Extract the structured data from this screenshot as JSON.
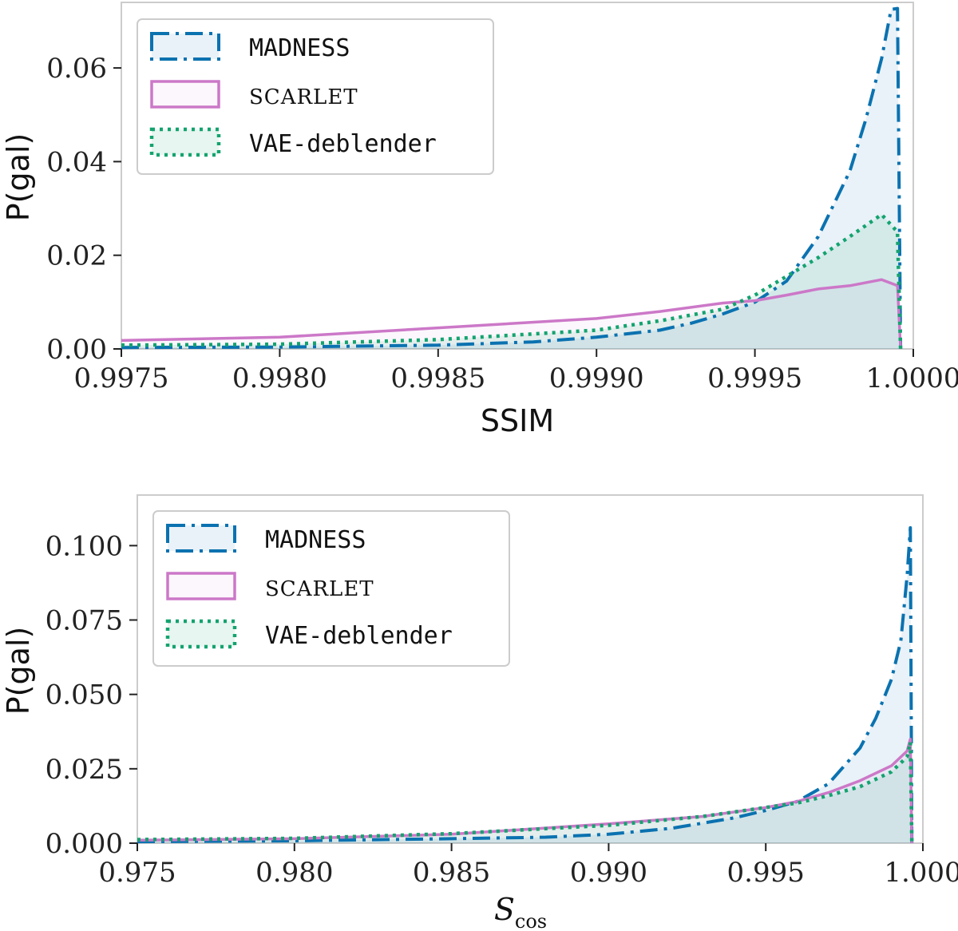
{
  "colors": {
    "madness": "#0b72b0",
    "scarlet": "#cc78c8",
    "vae": "#14a36f"
  },
  "chart_data": [
    {
      "type": "area",
      "title": "",
      "xlabel": "SSIM",
      "ylabel": "P(gal)",
      "xlim": [
        0.9975,
        1.0
      ],
      "ylim": [
        0.0,
        0.074
      ],
      "xticks": [
        0.9975,
        0.998,
        0.9985,
        0.999,
        0.9995,
        1.0
      ],
      "xtick_labels": [
        "0.9975",
        "0.9980",
        "0.9985",
        "0.9990",
        "0.9995",
        "1.0000"
      ],
      "yticks": [
        0.0,
        0.02,
        0.04,
        0.06
      ],
      "ytick_labels": [
        "0.00",
        "0.02",
        "0.04",
        "0.06"
      ],
      "legend_position": "top-left",
      "series": [
        {
          "name": "MADNESS",
          "key": "madness",
          "x": [
            0.9975,
            0.998,
            0.9985,
            0.9988,
            0.999,
            0.9992,
            0.9993,
            0.9994,
            0.9995,
            0.9996,
            0.9997,
            0.9998,
            0.99985,
            0.9999,
            0.99993,
            0.99995,
            0.99996
          ],
          "values": [
            0.0003,
            0.0004,
            0.0008,
            0.0015,
            0.0025,
            0.004,
            0.0055,
            0.0075,
            0.01,
            0.0145,
            0.024,
            0.038,
            0.049,
            0.062,
            0.0725,
            0.0727,
            0.0
          ]
        },
        {
          "name": "SCARLET",
          "key": "scarlet",
          "x": [
            0.9975,
            0.998,
            0.9985,
            0.999,
            0.9992,
            0.9994,
            0.9995,
            0.9996,
            0.9997,
            0.9998,
            0.9999,
            0.99995,
            0.99996
          ],
          "values": [
            0.0018,
            0.0025,
            0.0045,
            0.0065,
            0.008,
            0.0098,
            0.0103,
            0.0115,
            0.0128,
            0.0135,
            0.0148,
            0.0135,
            0.0
          ]
        },
        {
          "name": "VAE-deblender",
          "key": "vae",
          "x": [
            0.9975,
            0.998,
            0.9985,
            0.999,
            0.9992,
            0.9994,
            0.9995,
            0.9996,
            0.9997,
            0.9998,
            0.9999,
            0.99995,
            0.99996
          ],
          "values": [
            0.0008,
            0.001,
            0.002,
            0.004,
            0.006,
            0.0085,
            0.0115,
            0.0155,
            0.0195,
            0.024,
            0.0287,
            0.025,
            0.0
          ]
        }
      ]
    },
    {
      "type": "area",
      "title": "",
      "xlabel": "S",
      "xlabel_sub": "cos",
      "ylabel": "P(gal)",
      "xlim": [
        0.975,
        1.0
      ],
      "ylim": [
        0.0,
        0.117
      ],
      "xticks": [
        0.975,
        0.98,
        0.985,
        0.99,
        0.995,
        1.0
      ],
      "xtick_labels": [
        "0.975",
        "0.980",
        "0.985",
        "0.990",
        "0.995",
        "1.000"
      ],
      "yticks": [
        0.0,
        0.025,
        0.05,
        0.075,
        0.1
      ],
      "ytick_labels": [
        "0.000",
        "0.025",
        "0.050",
        "0.075",
        "0.100"
      ],
      "legend_position": "top-left",
      "series": [
        {
          "name": "MADNESS",
          "key": "madness",
          "x": [
            0.975,
            0.98,
            0.985,
            0.988,
            0.99,
            0.992,
            0.994,
            0.995,
            0.996,
            0.997,
            0.998,
            0.9985,
            0.999,
            0.9993,
            0.9995,
            0.9996,
            0.99965
          ],
          "values": [
            0.0005,
            0.0008,
            0.0015,
            0.002,
            0.003,
            0.005,
            0.0085,
            0.011,
            0.014,
            0.02,
            0.032,
            0.042,
            0.055,
            0.068,
            0.09,
            0.106,
            0.0
          ]
        },
        {
          "name": "SCARLET",
          "key": "scarlet",
          "x": [
            0.975,
            0.98,
            0.985,
            0.99,
            0.993,
            0.995,
            0.996,
            0.997,
            0.998,
            0.999,
            0.9995,
            0.9996,
            0.99965
          ],
          "values": [
            0.001,
            0.0015,
            0.003,
            0.0065,
            0.009,
            0.012,
            0.014,
            0.017,
            0.021,
            0.026,
            0.031,
            0.035,
            0.0
          ]
        },
        {
          "name": "VAE-deblender",
          "key": "vae",
          "x": [
            0.975,
            0.98,
            0.985,
            0.99,
            0.993,
            0.995,
            0.996,
            0.997,
            0.998,
            0.999,
            0.9995,
            0.9996,
            0.99965
          ],
          "values": [
            0.0012,
            0.0016,
            0.0032,
            0.006,
            0.009,
            0.012,
            0.0135,
            0.016,
            0.019,
            0.024,
            0.029,
            0.034,
            0.0
          ]
        }
      ]
    }
  ]
}
